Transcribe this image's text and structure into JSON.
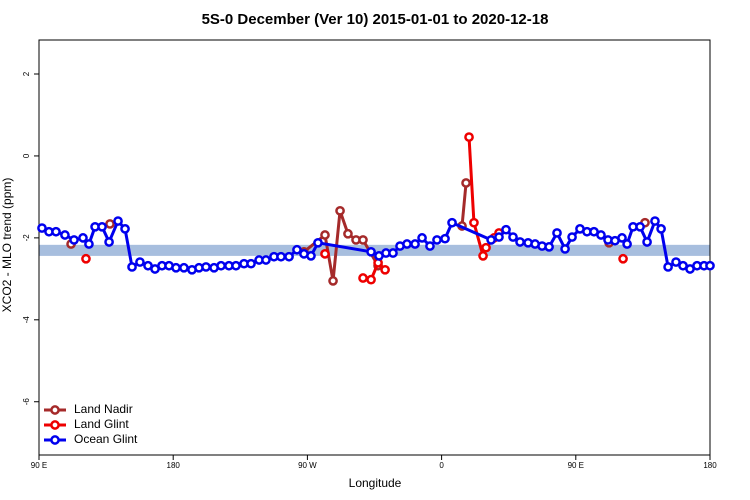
{
  "chart_data": {
    "type": "line",
    "title": "5S-0 December (Ver 10)   2015-01-01 to 2020-12-18",
    "x_label": "Longitude",
    "y_label": "XCO2 - MLO trend (ppm)",
    "xlim": [
      90,
      540
    ],
    "ylim": [
      -7.3,
      2.83
    ],
    "xticks": [
      {
        "value": 90,
        "label": "90 E"
      },
      180,
      {
        "value": 270,
        "label": "90 W"
      },
      {
        "value": 360,
        "label": "0"
      },
      {
        "value": 450,
        "label": "90 E"
      },
      {
        "value": 540,
        "label": "180"
      }
    ],
    "yticks": [
      -6,
      -4,
      -2,
      0,
      2
    ],
    "band_ylim": [
      -2.17,
      -2.44
    ],
    "band_color": "#a7bede",
    "legend": "bottom-left",
    "series": [
      {
        "name": "Land Nadir",
        "color": "#a52a2a",
        "x": [
          111.5,
          null,
          137.6,
          null,
          267.7,
          281.8,
          287.2,
          291.9,
          297.2,
          302.6,
          307.3,
          317.4,
          null,
          373.7,
          376.4,
          null,
          472.3,
          null,
          496.4
        ],
        "values": [
          -2.15,
          null,
          -1.66,
          null,
          -2.34,
          -1.93,
          -3.05,
          -1.34,
          -1.9,
          -2.05,
          -2.05,
          -2.68,
          null,
          -1.71,
          -0.66,
          null,
          -2.12,
          null,
          -1.63
        ]
      },
      {
        "name": "Land Glint",
        "color": "#ee0000",
        "x": [
          121.5,
          null,
          281.8,
          null,
          307.3,
          312.7,
          317.4,
          322.1,
          null,
          378.4,
          381.7,
          387.8,
          389.8,
          395.2,
          398.5,
          null,
          481.7
        ],
        "values": [
          -2.51,
          null,
          -2.39,
          null,
          -2.98,
          -3.02,
          -2.61,
          -2.78,
          null,
          0.46,
          -1.63,
          -2.44,
          -2.24,
          -2.0,
          -1.88,
          null,
          -2.51
        ]
      },
      {
        "name": "Ocean Glint",
        "color": "#0000ee",
        "x": [
          92,
          96.7,
          101.4,
          107.4,
          113.5,
          119.5,
          123.5,
          127.6,
          132.3,
          137,
          143,
          147.7,
          152.4,
          157.7,
          163.1,
          167.8,
          172.5,
          177.2,
          181.9,
          187.2,
          192.6,
          197.3,
          202,
          207.4,
          212.1,
          217.4,
          222.1,
          227.5,
          232.2,
          237.6,
          242.2,
          247.6,
          252.3,
          257.7,
          263,
          267.7,
          272.4,
          277.1,
          312.7,
          318,
          322.7,
          327.4,
          332.1,
          336.8,
          342.2,
          346.9,
          352.2,
          356.9,
          362.3,
          367,
          393.2,
          398.5,
          403.2,
          407.9,
          412.6,
          418,
          422.7,
          427.4,
          432.1,
          437.4,
          442.8,
          447.5,
          452.8,
          457.5,
          462.2,
          466.9,
          471.6,
          476.3,
          481,
          484.4,
          488.4,
          493.1,
          497.8,
          503.1,
          507.2,
          511.9,
          517.2,
          521.9,
          526.6,
          531.3,
          536,
          540
        ],
        "values": [
          -1.76,
          -1.85,
          -1.85,
          -1.93,
          -2.05,
          -2.0,
          -2.15,
          -1.73,
          -1.73,
          -2.1,
          -1.59,
          -1.78,
          -2.71,
          -2.59,
          -2.68,
          -2.76,
          -2.68,
          -2.68,
          -2.73,
          -2.73,
          -2.78,
          -2.73,
          -2.71,
          -2.73,
          -2.68,
          -2.68,
          -2.68,
          -2.63,
          -2.63,
          -2.54,
          -2.54,
          -2.46,
          -2.46,
          -2.46,
          -2.29,
          -2.39,
          -2.44,
          -2.12,
          -2.34,
          -2.44,
          -2.37,
          -2.37,
          -2.2,
          -2.15,
          -2.15,
          -2.0,
          -2.2,
          -2.05,
          -2.02,
          -1.63,
          -2.05,
          -1.98,
          -1.8,
          -1.98,
          -2.1,
          -2.12,
          -2.15,
          -2.2,
          -2.22,
          -1.88,
          -2.27,
          -1.98,
          -1.78,
          -1.85,
          -1.85,
          -1.93,
          -2.05,
          -2.07,
          -2.0,
          -2.15,
          -1.73,
          -1.73,
          -2.1,
          -1.59,
          -1.78,
          -2.71,
          -2.59,
          -2.68,
          -2.76,
          -2.68,
          -2.68,
          -2.68
        ]
      }
    ]
  }
}
